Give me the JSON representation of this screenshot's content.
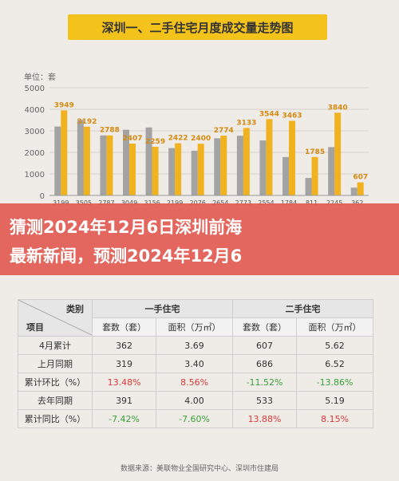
{
  "chart_data": {
    "type": "bar",
    "title": "深圳一、二手住宅月度成交量走势图",
    "unit_label": "单位：套",
    "ylim": [
      0,
      5000
    ],
    "yticks": [
      "0",
      "1000",
      "2000",
      "3000",
      "4000",
      "5000"
    ],
    "series": [
      {
        "name": "",
        "color": "#a3a3a3",
        "values": [
          3199,
          3505,
          2787,
          3049,
          3156,
          2199,
          2076,
          2654,
          2773,
          2554,
          1784,
          811,
          2245,
          362
        ]
      },
      {
        "name": "",
        "color": "#f0b21f",
        "values": [
          3949,
          3192,
          2788,
          2407,
          2259,
          2422,
          2400,
          2774,
          3133,
          3544,
          3463,
          1785,
          3840,
          607
        ]
      }
    ],
    "bar_labels_gray": [
      "3199",
      "3505",
      "2787",
      "3049",
      "3156",
      "2199",
      "2076",
      "2654",
      "2773",
      "2554",
      "1784",
      "811",
      "2245",
      "362"
    ],
    "bar_labels_gold": [
      "3949",
      "3192",
      "2788",
      "2407",
      "2259",
      "2422",
      "2400",
      "2774",
      "3133",
      "3544",
      "3463",
      "1785",
      "3840",
      "607"
    ]
  },
  "headline": {
    "line1": "猜测2024年12月6日深圳前海",
    "line2": "最新新闻，预测2024年12月6"
  },
  "table": {
    "corner_top": "类别",
    "corner_bottom": "项目",
    "groups": [
      "一手住宅",
      "二手住宅"
    ],
    "subheaders": [
      "套数（套）",
      "面积（万㎡）",
      "套数（套）",
      "面积（万㎡）"
    ],
    "rows": [
      {
        "label": "4月累计",
        "cells": [
          "362",
          "3.69",
          "607",
          "5.62"
        ]
      },
      {
        "label": "上月同期",
        "cells": [
          "319",
          "3.40",
          "686",
          "6.52"
        ]
      },
      {
        "label": "累计环比（%）",
        "cells": [
          "13.48%",
          "8.56%",
          "-11.52%",
          "-13.86%"
        ]
      },
      {
        "label": "去年同期",
        "cells": [
          "391",
          "4.00",
          "533",
          "5.19"
        ]
      },
      {
        "label": "累计同比（%）",
        "cells": [
          "-7.42%",
          "-7.60%",
          "13.88%",
          "8.15%"
        ]
      }
    ],
    "pos_color": "#d83a3a",
    "neg_color": "#3aa23a"
  },
  "source": "数据来源：美联物业全国研究中心、深圳市住建局"
}
